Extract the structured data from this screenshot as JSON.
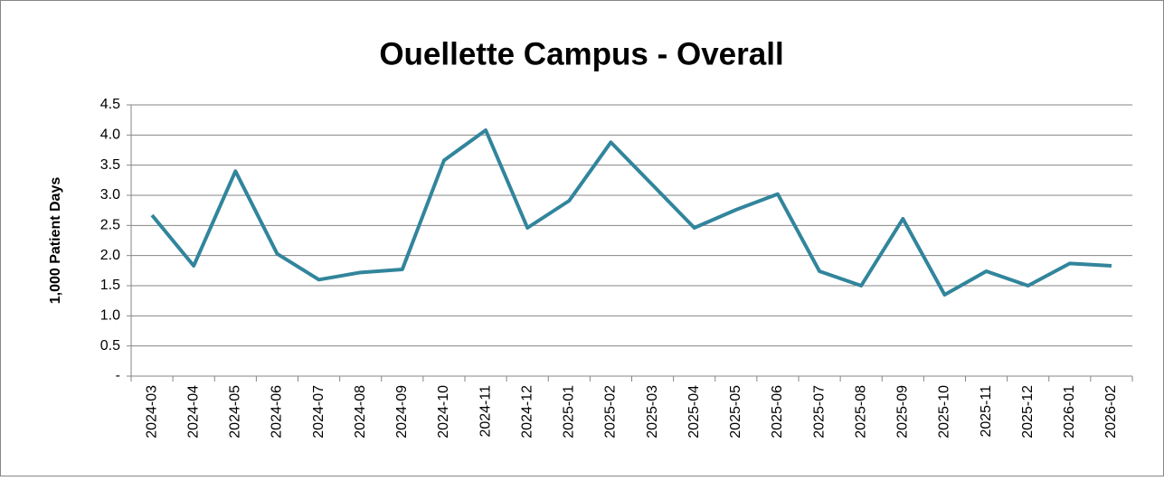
{
  "chart_data": {
    "type": "line",
    "title": "Ouellette Campus - Overall",
    "y_label": "1,000 Patient Days",
    "categories": [
      "2024-03",
      "2024-04",
      "2024-05",
      "2024-06",
      "2024-07",
      "2024-08",
      "2024-09",
      "2024-10",
      "2024-11",
      "2024-12",
      "2025-01",
      "2025-02",
      "2025-03",
      "2025-04",
      "2025-05",
      "2025-06",
      "2025-07",
      "2025-08",
      "2025-09",
      "2025-10",
      "2025-11",
      "2025-12",
      "2026-01",
      "2026-02"
    ],
    "series": [
      {
        "name": "Overall",
        "color": "#31859c",
        "values": [
          2.67,
          1.83,
          3.4,
          2.03,
          1.6,
          1.72,
          1.77,
          3.58,
          4.08,
          2.46,
          2.91,
          3.88,
          3.17,
          2.46,
          2.76,
          3.02,
          1.74,
          1.5,
          2.61,
          1.35,
          1.74,
          1.5,
          1.87,
          1.83
        ]
      }
    ],
    "ylim": [
      0,
      4.5
    ],
    "yticks": [
      {
        "value": 0,
        "label": "-"
      },
      0.5,
      {
        "value": 1,
        "label": "1.0"
      },
      1.5,
      {
        "value": 2,
        "label": "2.0"
      },
      2.5,
      {
        "value": 3,
        "label": "3.0"
      },
      3.5,
      {
        "value": 4,
        "label": "4.0"
      },
      4.5
    ],
    "grid": true
  }
}
